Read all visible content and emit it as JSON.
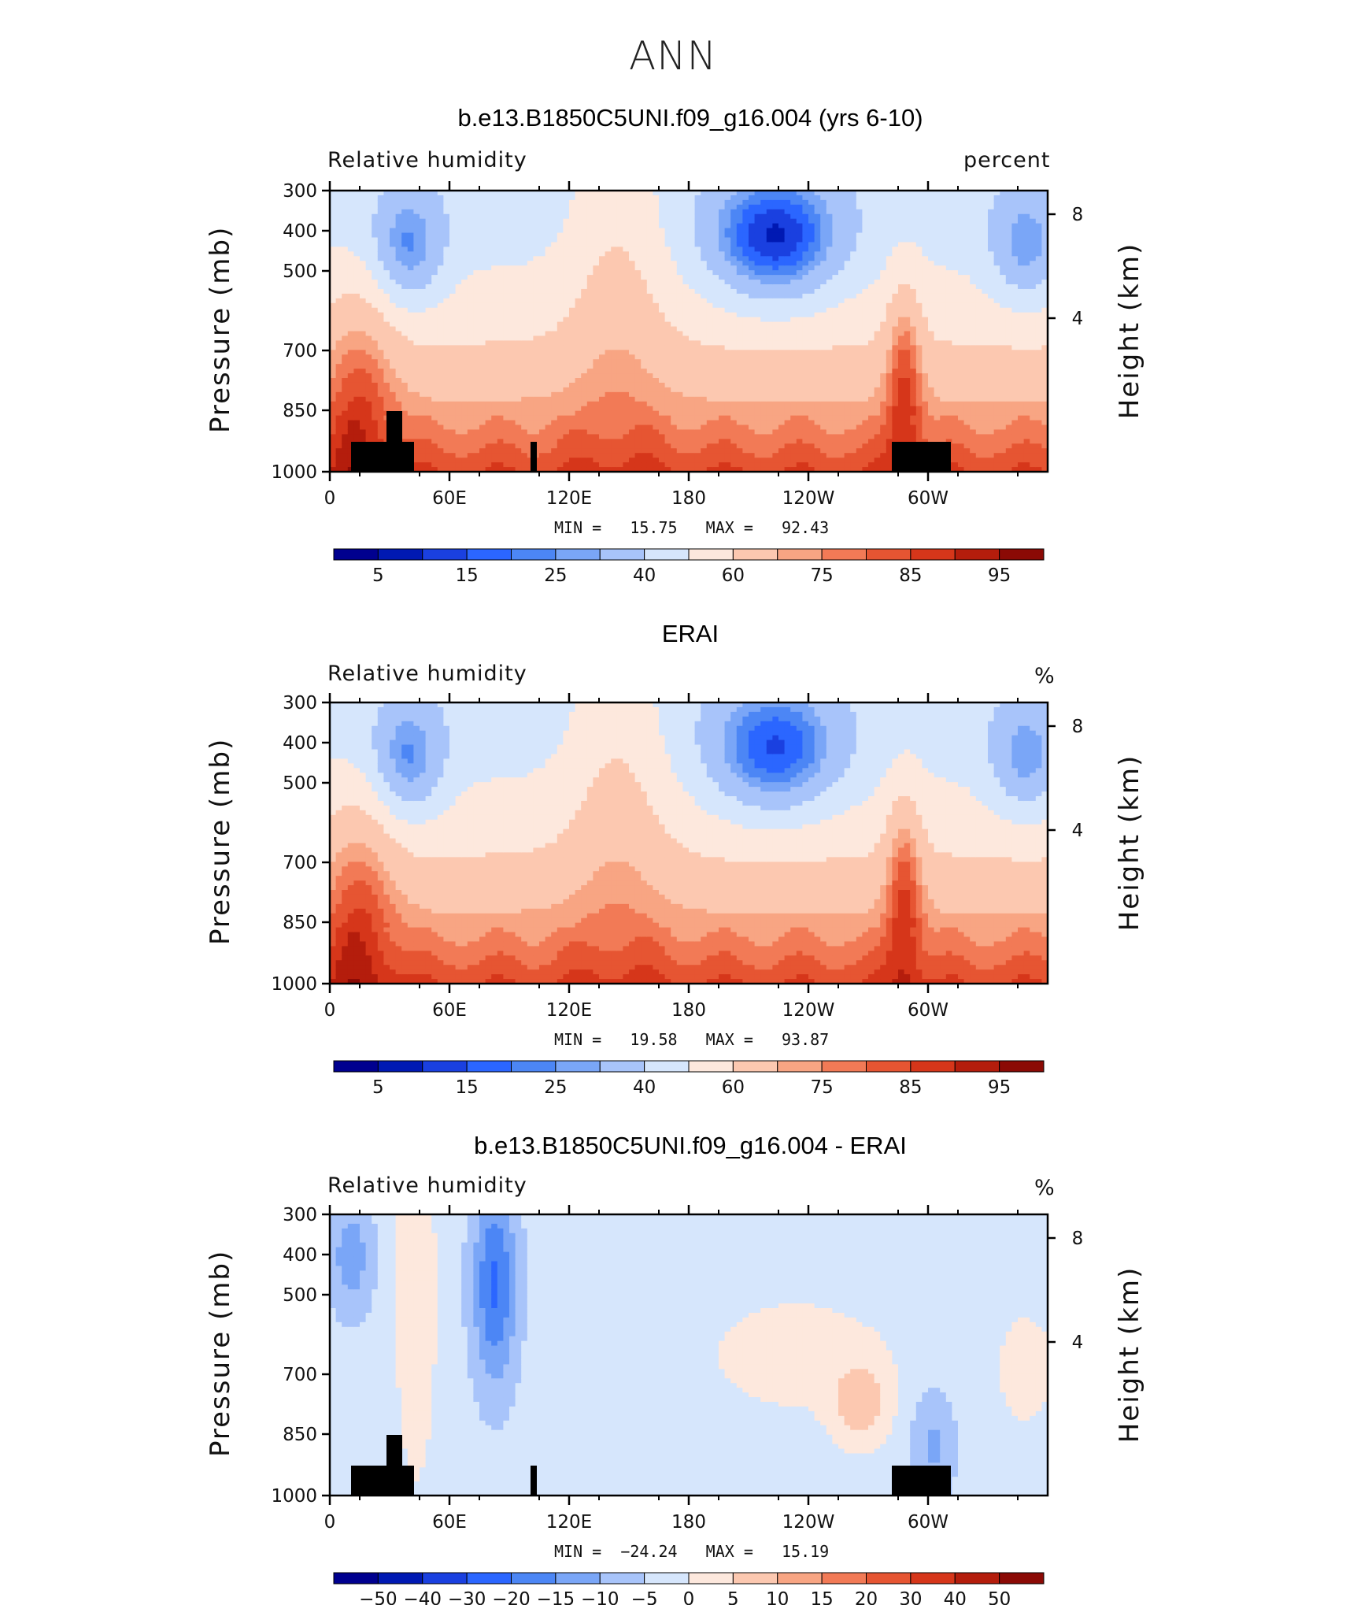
{
  "title": "ANN",
  "panels": [
    {
      "title": "b.e13.B1850C5UNI.f09_g16.004 (yrs 6-10)",
      "variable": "Relative humidity",
      "units": "percent",
      "min_label": "MIN =   15.75   MAX =   92.43",
      "colorbar_labels": [
        "5",
        "15",
        "25",
        "40",
        "60",
        "75",
        "85",
        "95"
      ]
    },
    {
      "title": "ERAI",
      "variable": "Relative humidity",
      "units": "%",
      "min_label": "MIN =   19.58   MAX =   93.87",
      "colorbar_labels": [
        "5",
        "15",
        "25",
        "40",
        "60",
        "75",
        "85",
        "95"
      ]
    },
    {
      "title": "b.e13.B1850C5UNI.f09_g16.004 - ERAI",
      "variable": "Relative humidity",
      "units": "%",
      "min_label": "MIN =  −24.24   MAX =   15.19",
      "colorbar_labels": [
        "−50",
        "−40",
        "−30",
        "−20",
        "−15",
        "−10",
        "−5",
        "0",
        "5",
        "10",
        "15",
        "20",
        "30",
        "40",
        "50"
      ]
    }
  ],
  "axes": {
    "y_left_label": "Pressure (mb)",
    "y_right_label": "Height (km)",
    "y_ticks": [
      "300",
      "400",
      "500",
      "700",
      "850",
      "1000"
    ],
    "y_right_ticks": [
      "8",
      "4"
    ],
    "x_ticks": [
      "0",
      "60E",
      "120E",
      "180",
      "120W",
      "60W"
    ]
  },
  "colors": {
    "abs_scale": [
      "#00008f",
      "#0019b3",
      "#1a40e0",
      "#2b66ff",
      "#4c86f5",
      "#7aa6f7",
      "#a8c4fa",
      "#d6e6fc",
      "#fde8dd",
      "#fcc8b0",
      "#f8a583",
      "#f27a56",
      "#e65532",
      "#d6361a",
      "#b41d0c",
      "#8b0a05"
    ],
    "diff_scale": [
      "#00008f",
      "#0019b3",
      "#1a40e0",
      "#2b66ff",
      "#4c86f5",
      "#7aa6f7",
      "#a8c4fa",
      "#d6e6fc",
      "#fde8dd",
      "#fcc8b0",
      "#f8a583",
      "#f27a56",
      "#e65532",
      "#d6361a",
      "#b41d0c",
      "#8b0a05"
    ]
  },
  "chart_data": [
    {
      "type": "heatmap",
      "title": "b.e13.B1850C5UNI.f09_g16.004 (yrs 6-10)",
      "xlabel": "",
      "ylabel": "Pressure (mb)",
      "variable": "Relative humidity",
      "units": "percent",
      "min": 15.75,
      "max": 92.43,
      "levels": [
        5,
        10,
        15,
        20,
        25,
        30,
        40,
        50,
        60,
        70,
        75,
        80,
        85,
        90,
        95
      ]
    },
    {
      "type": "heatmap",
      "title": "ERAI",
      "xlabel": "",
      "ylabel": "Pressure (mb)",
      "variable": "Relative humidity",
      "units": "%",
      "min": 19.58,
      "max": 93.87,
      "levels": [
        5,
        10,
        15,
        20,
        25,
        30,
        40,
        50,
        60,
        70,
        75,
        80,
        85,
        90,
        95
      ]
    },
    {
      "type": "heatmap",
      "title": "b.e13.B1850C5UNI.f09_g16.004 - ERAI",
      "xlabel": "",
      "ylabel": "Pressure (mb)",
      "variable": "Relative humidity",
      "units": "%",
      "min": -24.24,
      "max": 15.19,
      "levels": [
        -50,
        -40,
        -30,
        -20,
        -15,
        -10,
        -5,
        0,
        5,
        10,
        15,
        20,
        30,
        40,
        50
      ]
    }
  ]
}
